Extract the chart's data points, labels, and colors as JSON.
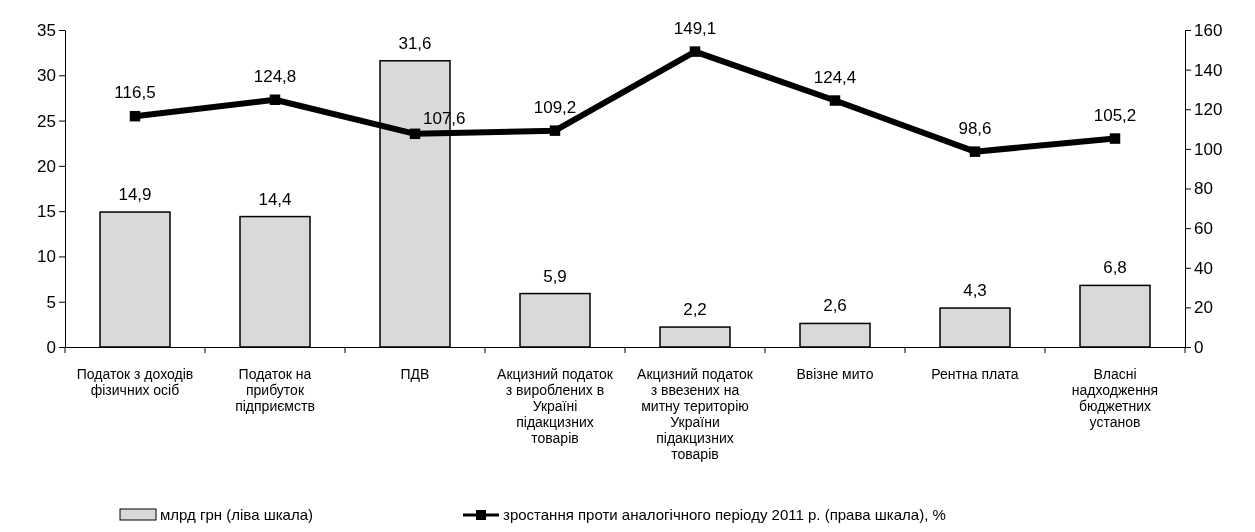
{
  "chart_data": {
    "type": "bar",
    "categories": [
      "Податок з доходів фізичних осіб",
      "Податок на прибуток підприємств",
      "ПДВ",
      "Акцизний податок з вироблених в Україні підакцизних товарів",
      "Акцизний податок з ввезених на митну територію України підакцизних товарів",
      "Ввізне мито",
      "Рентна плата",
      "Власні надходження бюджетних установ"
    ],
    "series": [
      {
        "name": "млрд грн (ліва шкала)",
        "color": "#d9d9d9",
        "values": [
          14.9,
          14.4,
          31.6,
          5.9,
          2.2,
          2.6,
          4.3,
          6.8
        ],
        "value_labels": [
          "14,9",
          "14,4",
          "31,6",
          "5,9",
          "2,2",
          "2,6",
          "4,3",
          "6,8"
        ]
      },
      {
        "name": "зростання проти аналогічного періоду 2011 р. (права шкала), %",
        "type": "line",
        "axis": "y2",
        "color": "#000000",
        "values": [
          116.5,
          124.8,
          107.6,
          109.2,
          149.1,
          124.4,
          98.6,
          105.2
        ],
        "value_labels": [
          "116,5",
          "124,8",
          "107,6",
          "109,2",
          "149,1",
          "124,4",
          "98,6",
          "105,2"
        ]
      }
    ],
    "ylim": [
      0,
      35
    ],
    "yticks": [
      0,
      5,
      10,
      15,
      20,
      25,
      30,
      35
    ],
    "y2lim": [
      0,
      160
    ],
    "y2ticks": [
      0,
      20,
      40,
      60,
      80,
      100,
      120,
      140,
      160
    ],
    "grid": false,
    "legend": "bottom",
    "marker": "square",
    "line_style": "solid"
  }
}
